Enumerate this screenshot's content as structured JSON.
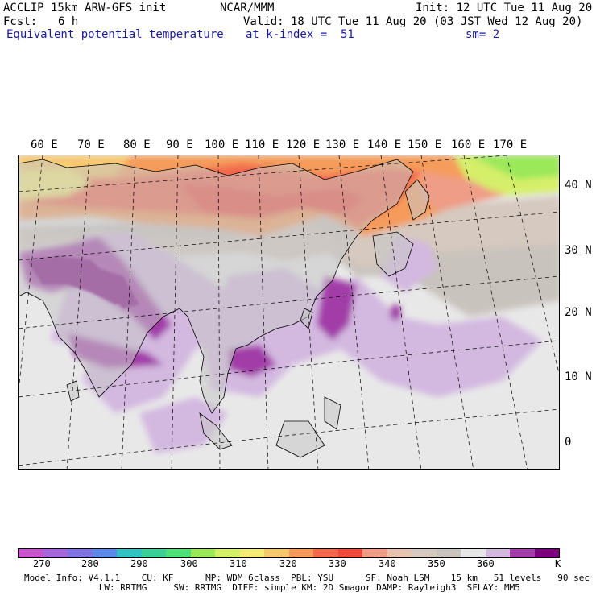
{
  "header": {
    "title": "ACCLIP 15km ARW-GFS init",
    "center": "NCAR/MMM",
    "init": "Init: 12 UTC Tue 11 Aug 20",
    "fcst_label": "Fcst:",
    "fcst_value": "6 h",
    "valid": "Valid: 18 UTC Tue 11 Aug 20 (03 JST Wed 12 Aug 20)",
    "field": "Equivalent potential temperature",
    "level": "at k-index =  51",
    "smoothing": "sm= 2"
  },
  "map": {
    "lon_labels": [
      "60 E",
      "70 E",
      "80 E",
      "90 E",
      "100 E",
      "110 E",
      "120 E",
      "130 E",
      "140 E",
      "150 E",
      "160 E",
      "170 E"
    ],
    "lat_labels": [
      "40 N",
      "30 N",
      "20 N",
      "10 N",
      "0"
    ]
  },
  "colorbar": {
    "colors": [
      "#c955cc",
      "#a567da",
      "#7f74e0",
      "#5d8ae6",
      "#33c2c2",
      "#3ccf96",
      "#50e07a",
      "#9be85a",
      "#d6ef6a",
      "#f5ea78",
      "#f7c870",
      "#f59c5c",
      "#f3684e",
      "#ef4a3c",
      "#ef9d86",
      "#e6c4b0",
      "#d6c9bf",
      "#c9c3bd",
      "#e6e6e6",
      "#d3b8e0",
      "#a23ea8",
      "#7a007f"
    ],
    "labels": [
      "270",
      "280",
      "290",
      "300",
      "310",
      "320",
      "330",
      "340",
      "350",
      "360"
    ],
    "unit": "K"
  },
  "footer": {
    "line1": "Model Info: V4.1.1    CU: KF      MP: WDM 6class  PBL: YSU      SF: Noah LSM    15 km   51 levels   90 sec",
    "line2": "              LW: RRTMG     SW: RRTMG  DIFF: simple KM: 2D Smagor DAMP: Rayleigh3  SFLAY: MM5"
  }
}
